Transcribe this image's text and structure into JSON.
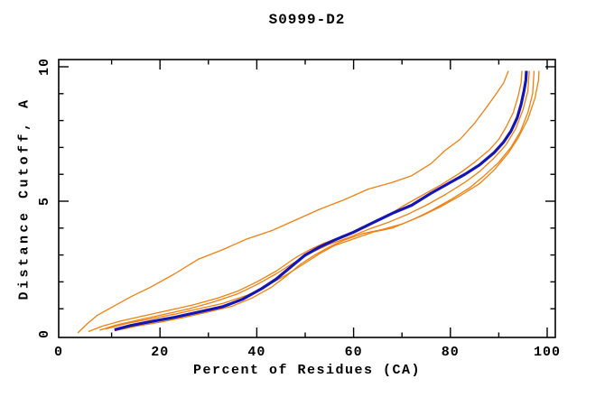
{
  "header": {
    "title": "S0999-D2"
  },
  "colors": {
    "highlight_curve": "#1515b4",
    "model_curve": "#f08010",
    "frame": "#000000",
    "background": "#ffffff",
    "text": "#000000"
  },
  "chart_data": {
    "type": "line",
    "title": "S0999-D2",
    "xlabel": "Percent of Residues (CA)",
    "ylabel": "Distance Cutoff, A",
    "xlim": [
      0,
      102
    ],
    "ylim": [
      0,
      10.3
    ],
    "x_major_ticks": [
      0,
      20,
      40,
      60,
      80,
      100
    ],
    "x_minor_ticks": [
      10,
      30,
      50,
      70,
      90
    ],
    "x_tick_labels": [
      "0",
      "20",
      "40",
      "60",
      "80",
      "100"
    ],
    "y_major_ticks": [
      0,
      5,
      10
    ],
    "y_minor_ticks": [
      1,
      2,
      3,
      4,
      6,
      7,
      8,
      9
    ],
    "y_tick_labels": [
      "0",
      "5",
      "10"
    ],
    "grid": false,
    "legend_position": "none",
    "tick_style": "inward-mirrored",
    "series": [
      {
        "name": "model-orange-1-best",
        "color": "#f08010",
        "width": 1.3,
        "points": [
          [
            3,
            0.1
          ],
          [
            5,
            0.45
          ],
          [
            7,
            0.75
          ],
          [
            10,
            1.05
          ],
          [
            14,
            1.45
          ],
          [
            18,
            1.8
          ],
          [
            23,
            2.3
          ],
          [
            28,
            2.85
          ],
          [
            33,
            3.2
          ],
          [
            38,
            3.6
          ],
          [
            43,
            3.9
          ],
          [
            48,
            4.3
          ],
          [
            53,
            4.7
          ],
          [
            58,
            5.05
          ],
          [
            63,
            5.45
          ],
          [
            68,
            5.7
          ],
          [
            72,
            5.95
          ],
          [
            76,
            6.4
          ],
          [
            79,
            6.9
          ],
          [
            82,
            7.3
          ],
          [
            85,
            7.9
          ],
          [
            87.5,
            8.5
          ],
          [
            89.5,
            9.0
          ],
          [
            91,
            9.4
          ],
          [
            92,
            9.85
          ]
        ]
      },
      {
        "name": "model-orange-2",
        "color": "#f08010",
        "width": 1.3,
        "points": [
          [
            5.2,
            0.15
          ],
          [
            8,
            0.35
          ],
          [
            12,
            0.55
          ],
          [
            17,
            0.75
          ],
          [
            22,
            0.95
          ],
          [
            27,
            1.15
          ],
          [
            32,
            1.4
          ],
          [
            36,
            1.65
          ],
          [
            40,
            2.0
          ],
          [
            44,
            2.4
          ],
          [
            48,
            2.9
          ],
          [
            51,
            3.2
          ],
          [
            54,
            3.45
          ],
          [
            58,
            3.7
          ],
          [
            62,
            4.0
          ],
          [
            66,
            4.35
          ],
          [
            70,
            4.8
          ],
          [
            74,
            5.2
          ],
          [
            78,
            5.6
          ],
          [
            82,
            6.05
          ],
          [
            85,
            6.45
          ],
          [
            88,
            6.9
          ],
          [
            90,
            7.3
          ],
          [
            91.5,
            7.75
          ],
          [
            93,
            8.3
          ],
          [
            94,
            8.9
          ],
          [
            94.6,
            9.4
          ],
          [
            94.8,
            9.85
          ]
        ]
      },
      {
        "name": "model-orange-3",
        "color": "#f08010",
        "width": 1.3,
        "points": [
          [
            7.5,
            0.2
          ],
          [
            11,
            0.4
          ],
          [
            16,
            0.6
          ],
          [
            21,
            0.8
          ],
          [
            26,
            1.0
          ],
          [
            31,
            1.25
          ],
          [
            36,
            1.55
          ],
          [
            40,
            1.9
          ],
          [
            44,
            2.3
          ],
          [
            48,
            2.75
          ],
          [
            52,
            3.15
          ],
          [
            55,
            3.4
          ],
          [
            59,
            3.65
          ],
          [
            63,
            3.95
          ],
          [
            67,
            4.2
          ],
          [
            71,
            4.5
          ],
          [
            75,
            4.85
          ],
          [
            79,
            5.25
          ],
          [
            83,
            5.7
          ],
          [
            86,
            6.1
          ],
          [
            89,
            6.6
          ],
          [
            91.5,
            7.1
          ],
          [
            93.5,
            7.7
          ],
          [
            95,
            8.4
          ],
          [
            96,
            9.1
          ],
          [
            96.3,
            9.85
          ]
        ]
      },
      {
        "name": "model-orange-4",
        "color": "#f08010",
        "width": 1.3,
        "points": [
          [
            8.8,
            0.25
          ],
          [
            13,
            0.45
          ],
          [
            18,
            0.62
          ],
          [
            23,
            0.8
          ],
          [
            28,
            1.0
          ],
          [
            33,
            1.2
          ],
          [
            38,
            1.5
          ],
          [
            42,
            1.85
          ],
          [
            46,
            2.25
          ],
          [
            50,
            2.7
          ],
          [
            53,
            3.05
          ],
          [
            56,
            3.35
          ],
          [
            60,
            3.6
          ],
          [
            64,
            3.85
          ],
          [
            68,
            4.0
          ],
          [
            72,
            4.3
          ],
          [
            76,
            4.65
          ],
          [
            80,
            5.05
          ],
          [
            84,
            5.5
          ],
          [
            87,
            5.95
          ],
          [
            90,
            6.45
          ],
          [
            92.5,
            7.0
          ],
          [
            94.5,
            7.6
          ],
          [
            96,
            8.3
          ],
          [
            97,
            9.0
          ],
          [
            97.3,
            9.85
          ]
        ]
      },
      {
        "name": "model-orange-5",
        "color": "#f08010",
        "width": 1.3,
        "points": [
          [
            10.6,
            0.18
          ],
          [
            15,
            0.35
          ],
          [
            20,
            0.5
          ],
          [
            25,
            0.68
          ],
          [
            30,
            0.88
          ],
          [
            35,
            1.1
          ],
          [
            39,
            1.4
          ],
          [
            43,
            1.8
          ],
          [
            46,
            2.2
          ],
          [
            49,
            2.65
          ],
          [
            52,
            3.0
          ],
          [
            55,
            3.3
          ],
          [
            58,
            3.55
          ],
          [
            62,
            3.8
          ],
          [
            66,
            3.95
          ],
          [
            70,
            4.15
          ],
          [
            74,
            4.45
          ],
          [
            78,
            4.8
          ],
          [
            82,
            5.2
          ],
          [
            86,
            5.65
          ],
          [
            89,
            6.15
          ],
          [
            92,
            6.8
          ],
          [
            94,
            7.35
          ],
          [
            96,
            8.05
          ],
          [
            97.5,
            8.85
          ],
          [
            98.2,
            9.5
          ],
          [
            98.3,
            9.85
          ]
        ]
      },
      {
        "name": "model-highlighted-blue",
        "color": "#1515b4",
        "width": 3.2,
        "points": [
          [
            10.6,
            0.22
          ],
          [
            14,
            0.38
          ],
          [
            18,
            0.52
          ],
          [
            23,
            0.68
          ],
          [
            28,
            0.88
          ],
          [
            33,
            1.08
          ],
          [
            37,
            1.35
          ],
          [
            41,
            1.75
          ],
          [
            44,
            2.1
          ],
          [
            47,
            2.55
          ],
          [
            50,
            3.0
          ],
          [
            53,
            3.3
          ],
          [
            56,
            3.55
          ],
          [
            60,
            3.85
          ],
          [
            64,
            4.2
          ],
          [
            68,
            4.55
          ],
          [
            72,
            4.85
          ],
          [
            76,
            5.3
          ],
          [
            80,
            5.7
          ],
          [
            83,
            6.0
          ],
          [
            86,
            6.35
          ],
          [
            89,
            6.8
          ],
          [
            91,
            7.2
          ],
          [
            92.5,
            7.6
          ],
          [
            93.8,
            8.1
          ],
          [
            94.6,
            8.6
          ],
          [
            95.2,
            9.1
          ],
          [
            95.6,
            9.5
          ],
          [
            95.7,
            9.85
          ]
        ]
      }
    ]
  }
}
